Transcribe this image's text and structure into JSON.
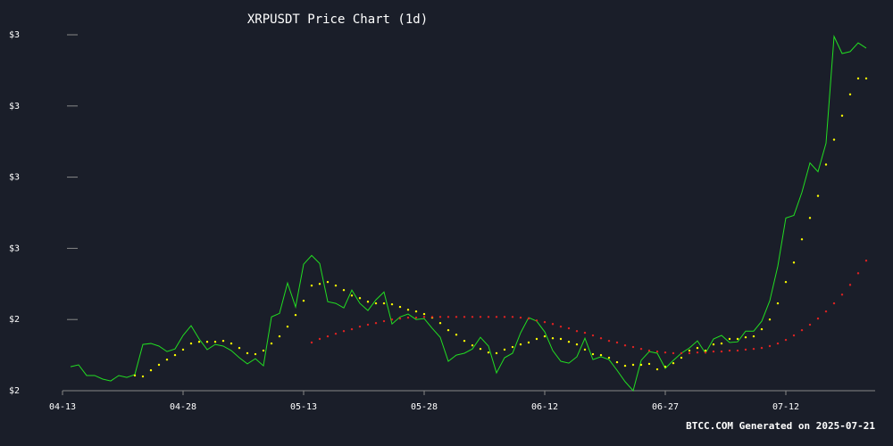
{
  "chart_data": {
    "type": "line",
    "title": "XRPUSDT Price Chart (1d)",
    "footer": "BTCC.COM Generated on 2025-07-21",
    "categories": [
      "04-13",
      null,
      null,
      null,
      null,
      null,
      null,
      null,
      null,
      null,
      null,
      null,
      null,
      null,
      null,
      "04-28",
      null,
      null,
      null,
      null,
      null,
      null,
      null,
      null,
      null,
      null,
      null,
      null,
      null,
      null,
      "05-13",
      null,
      null,
      null,
      null,
      null,
      null,
      null,
      null,
      null,
      null,
      null,
      null,
      null,
      null,
      "05-28",
      null,
      null,
      null,
      null,
      null,
      null,
      null,
      null,
      null,
      null,
      null,
      null,
      null,
      null,
      "06-12",
      null,
      null,
      null,
      null,
      null,
      null,
      null,
      null,
      null,
      null,
      null,
      null,
      null,
      null,
      "06-27",
      null,
      null,
      null,
      null,
      null,
      null,
      null,
      null,
      null,
      null,
      null,
      null,
      null,
      null,
      "07-12",
      null,
      null,
      null,
      null,
      null,
      null,
      null,
      null,
      null,
      null
    ],
    "ylim": [
      2.0,
      3.5
    ],
    "yticks": [
      {
        "value": 2.0,
        "label": "$2"
      },
      {
        "value": 2.3,
        "label": "$2"
      },
      {
        "value": 2.6,
        "label": "$3"
      },
      {
        "value": 2.9,
        "label": "$3"
      },
      {
        "value": 3.2,
        "label": "$3"
      },
      {
        "value": 3.5,
        "label": "$3"
      }
    ],
    "series": [
      {
        "color": "#22dd22",
        "style": "line",
        "values": [
          null,
          2.101,
          2.109,
          2.064,
          2.064,
          2.049,
          2.041,
          2.064,
          2.056,
          2.068,
          2.195,
          2.199,
          2.188,
          2.165,
          2.176,
          2.233,
          2.274,
          2.218,
          2.173,
          2.195,
          2.188,
          2.169,
          2.139,
          2.113,
          2.135,
          2.105,
          2.311,
          2.326,
          2.454,
          2.353,
          2.533,
          2.57,
          2.536,
          2.375,
          2.368,
          2.349,
          2.424,
          2.368,
          2.338,
          2.383,
          2.416,
          2.281,
          2.311,
          2.323,
          2.3,
          2.304,
          2.263,
          2.225,
          2.124,
          2.15,
          2.158,
          2.176,
          2.225,
          2.188,
          2.075,
          2.139,
          2.158,
          2.244,
          2.308,
          2.293,
          2.248,
          2.169,
          2.124,
          2.116,
          2.143,
          2.221,
          2.131,
          2.143,
          2.131,
          2.086,
          2.038,
          2.0,
          2.128,
          2.165,
          2.158,
          2.094,
          2.128,
          2.158,
          2.18,
          2.21,
          2.158,
          2.218,
          2.233,
          2.203,
          2.206,
          2.251,
          2.251,
          2.293,
          2.379,
          2.525,
          2.728,
          2.739,
          2.836,
          2.96,
          2.923,
          3.043,
          3.493,
          3.421,
          3.429,
          3.466,
          3.444
        ]
      },
      {
        "color": "#ffff00",
        "style": "dots",
        "values": [
          null,
          null,
          null,
          null,
          null,
          null,
          null,
          null,
          null,
          2.064,
          2.06,
          2.086,
          2.109,
          2.131,
          2.15,
          2.173,
          2.199,
          2.206,
          2.206,
          2.206,
          2.21,
          2.199,
          2.18,
          2.158,
          2.154,
          2.169,
          2.199,
          2.229,
          2.27,
          2.319,
          2.379,
          2.443,
          2.45,
          2.458,
          2.443,
          2.424,
          2.401,
          2.39,
          2.375,
          2.368,
          2.368,
          2.364,
          2.353,
          2.341,
          2.334,
          2.323,
          2.308,
          2.285,
          2.255,
          2.236,
          2.21,
          2.191,
          2.176,
          2.161,
          2.158,
          2.173,
          2.184,
          2.195,
          2.203,
          2.218,
          2.229,
          2.221,
          2.218,
          2.206,
          2.195,
          2.173,
          2.154,
          2.15,
          2.139,
          2.12,
          2.105,
          2.109,
          2.109,
          2.113,
          2.09,
          2.101,
          2.116,
          2.139,
          2.169,
          2.18,
          2.169,
          2.195,
          2.199,
          2.218,
          2.218,
          2.225,
          2.229,
          2.259,
          2.3,
          2.368,
          2.458,
          2.54,
          2.638,
          2.728,
          2.821,
          2.953,
          3.058,
          3.159,
          3.249,
          3.316,
          3.316
        ]
      },
      {
        "color": "#dd2222",
        "style": "dots",
        "values": [
          null,
          null,
          null,
          null,
          null,
          null,
          null,
          null,
          null,
          null,
          null,
          null,
          null,
          null,
          null,
          null,
          null,
          null,
          null,
          null,
          null,
          null,
          null,
          null,
          null,
          null,
          null,
          null,
          null,
          null,
          null,
          2.203,
          2.218,
          2.229,
          2.24,
          2.251,
          2.259,
          2.27,
          2.278,
          2.285,
          2.293,
          2.3,
          2.304,
          2.308,
          2.308,
          2.311,
          2.311,
          2.311,
          2.311,
          2.311,
          2.311,
          2.311,
          2.311,
          2.311,
          2.311,
          2.311,
          2.311,
          2.308,
          2.304,
          2.296,
          2.289,
          2.281,
          2.27,
          2.263,
          2.251,
          2.244,
          2.233,
          2.221,
          2.21,
          2.203,
          2.191,
          2.184,
          2.176,
          2.169,
          2.165,
          2.161,
          2.158,
          2.158,
          2.158,
          2.161,
          2.161,
          2.165,
          2.165,
          2.169,
          2.169,
          2.173,
          2.176,
          2.18,
          2.188,
          2.199,
          2.214,
          2.233,
          2.255,
          2.278,
          2.304,
          2.334,
          2.368,
          2.405,
          2.446,
          2.495,
          2.548
        ]
      }
    ]
  }
}
